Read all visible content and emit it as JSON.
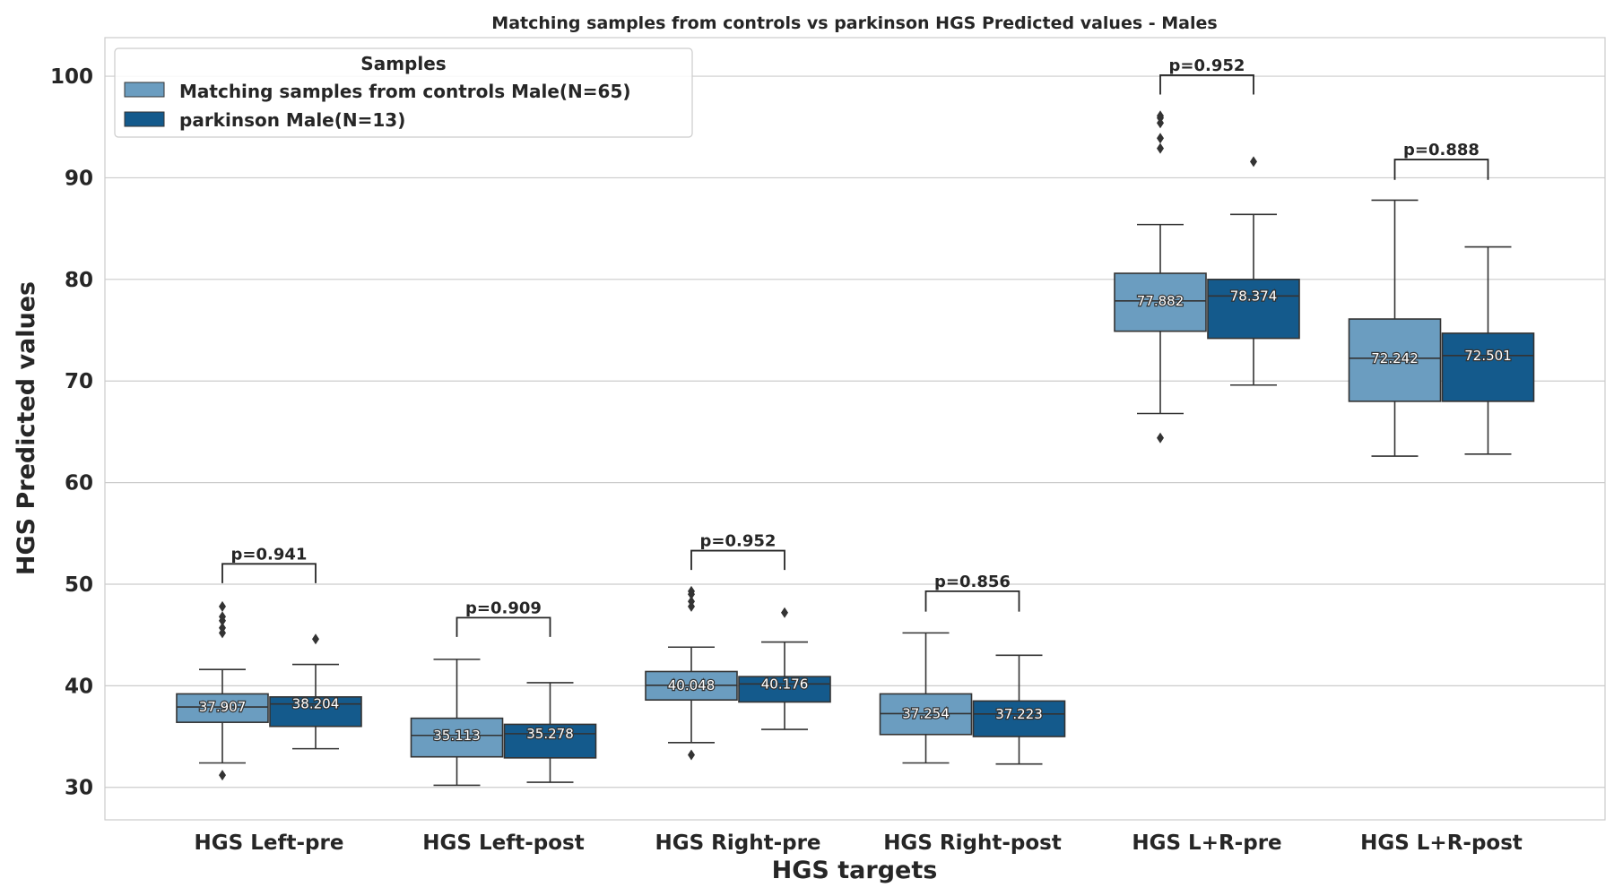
{
  "chart_data": {
    "type": "box",
    "title": "Matching samples from controls vs parkinson HGS Predicted values - Males",
    "xlabel": "HGS targets",
    "ylabel": "HGS Predicted values",
    "ylim": [
      26.8,
      103.8
    ],
    "yticks": [
      30,
      40,
      50,
      60,
      70,
      80,
      90,
      100
    ],
    "grid": true,
    "legend": {
      "title": "Samples",
      "placement": "top-left"
    },
    "categories": [
      "HGS Left-pre",
      "HGS Left-post",
      "HGS Right-pre",
      "HGS Right-post",
      "HGS L+R-pre",
      "HGS L+R-post"
    ],
    "series": [
      {
        "name": "Matching samples from controls Male(N=65)",
        "color": "#6b9dc0",
        "boxes": [
          {
            "whislo": 32.4,
            "q1": 36.4,
            "med": 37.907,
            "q3": 39.2,
            "whishi": 41.6,
            "fliers": [
              31.2,
              45.2,
              45.7,
              46.4,
              46.8,
              47.8
            ]
          },
          {
            "whislo": 30.2,
            "q1": 33.0,
            "med": 35.113,
            "q3": 36.8,
            "whishi": 42.6,
            "fliers": []
          },
          {
            "whislo": 34.4,
            "q1": 38.6,
            "med": 40.048,
            "q3": 41.4,
            "whishi": 43.8,
            "fliers": [
              33.2,
              47.8,
              48.3,
              49.0,
              49.3
            ]
          },
          {
            "whislo": 32.4,
            "q1": 35.2,
            "med": 37.254,
            "q3": 39.2,
            "whishi": 45.2,
            "fliers": []
          },
          {
            "whislo": 66.8,
            "q1": 74.9,
            "med": 77.882,
            "q3": 80.6,
            "whishi": 85.4,
            "fliers": [
              64.4,
              92.9,
              93.9,
              95.4,
              95.9,
              96.1
            ]
          },
          {
            "whislo": 62.6,
            "q1": 68.0,
            "med": 72.242,
            "q3": 76.1,
            "whishi": 87.8,
            "fliers": []
          }
        ]
      },
      {
        "name": "parkinson Male(N=13)",
        "color": "#145a8c",
        "boxes": [
          {
            "whislo": 33.8,
            "q1": 36.0,
            "med": 38.204,
            "q3": 38.9,
            "whishi": 42.1,
            "fliers": [
              44.6
            ]
          },
          {
            "whislo": 30.5,
            "q1": 32.9,
            "med": 35.278,
            "q3": 36.2,
            "whishi": 40.3,
            "fliers": []
          },
          {
            "whislo": 35.7,
            "q1": 38.4,
            "med": 40.176,
            "q3": 40.9,
            "whishi": 44.3,
            "fliers": [
              47.2
            ]
          },
          {
            "whislo": 32.3,
            "q1": 35.0,
            "med": 37.223,
            "q3": 38.5,
            "whishi": 43.0,
            "fliers": []
          },
          {
            "whislo": 69.6,
            "q1": 74.2,
            "med": 78.374,
            "q3": 80.0,
            "whishi": 86.4,
            "fliers": [
              91.6
            ]
          },
          {
            "whislo": 62.8,
            "q1": 68.0,
            "med": 72.501,
            "q3": 74.7,
            "whishi": 83.2,
            "fliers": []
          }
        ]
      }
    ],
    "median_labels": [
      [
        "37.907",
        "35.113",
        "40.048",
        "37.254",
        "77.882",
        "72.242"
      ],
      [
        "38.204",
        "35.278",
        "40.176",
        "37.223",
        "78.374",
        "72.501"
      ]
    ],
    "annotations": [
      {
        "text": "p=0.941",
        "y": 52.0,
        "left_drop": 50.1,
        "right_drop": 50.1
      },
      {
        "text": "p=0.909",
        "y": 46.7,
        "left_drop": 44.8,
        "right_drop": 44.8
      },
      {
        "text": "p=0.952",
        "y": 53.3,
        "left_drop": 51.4,
        "right_drop": 51.4
      },
      {
        "text": "p=0.856",
        "y": 49.3,
        "left_drop": 47.3,
        "right_drop": 47.3
      },
      {
        "text": "p=0.952",
        "y": 100.1,
        "left_drop": 98.2,
        "right_drop": 98.2
      },
      {
        "text": "p=0.888",
        "y": 91.8,
        "left_drop": 89.8,
        "right_drop": 89.8
      }
    ]
  }
}
